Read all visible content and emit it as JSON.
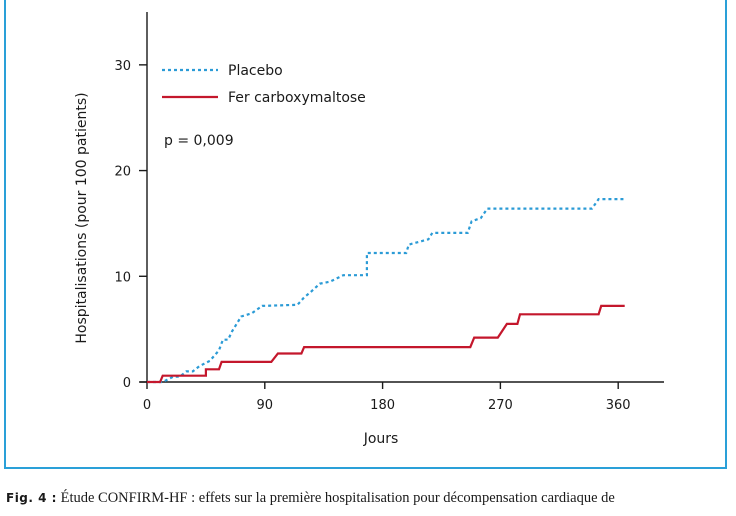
{
  "chart_data": {
    "type": "line",
    "xlabel": "Jours",
    "ylabel": "Hospitalisations (pour 100 patients)",
    "xlim": [
      0,
      395
    ],
    "ylim": [
      0,
      35
    ],
    "xticks": [
      0,
      90,
      180,
      270,
      360
    ],
    "yticks": [
      0,
      10,
      20,
      30
    ],
    "xtick_labels": [
      "0",
      "90",
      "180",
      "270",
      "360"
    ],
    "ytick_labels": [
      "0",
      "10",
      "20",
      "30"
    ],
    "annotation": "p = 0,009",
    "legend_position": "top-left",
    "grid": false,
    "step": true,
    "series": [
      {
        "name": "Placebo",
        "color": "#2b9bd6",
        "style": "dotted",
        "points": [
          [
            0,
            0
          ],
          [
            12,
            0
          ],
          [
            20,
            0.5
          ],
          [
            25,
            0.5
          ],
          [
            30,
            1
          ],
          [
            35,
            1
          ],
          [
            40,
            1.5
          ],
          [
            48,
            2
          ],
          [
            55,
            3
          ],
          [
            58,
            4
          ],
          [
            62,
            4
          ],
          [
            65,
            4.8
          ],
          [
            72,
            6.2
          ],
          [
            80,
            6.5
          ],
          [
            88,
            7.2
          ],
          [
            115,
            7.3
          ],
          [
            120,
            8
          ],
          [
            125,
            8.5
          ],
          [
            132,
            9.3
          ],
          [
            140,
            9.5
          ],
          [
            150,
            10.1
          ],
          [
            168,
            10.1
          ],
          [
            168,
            12.2
          ],
          [
            198,
            12.2
          ],
          [
            200,
            13
          ],
          [
            215,
            13.5
          ],
          [
            218,
            14.1
          ],
          [
            245,
            14.1
          ],
          [
            248,
            15.2
          ],
          [
            255,
            15.5
          ],
          [
            260,
            16.4
          ],
          [
            340,
            16.4
          ],
          [
            345,
            17.3
          ],
          [
            365,
            17.3
          ]
        ]
      },
      {
        "name": "Fer carboxymaltose",
        "color": "#c4172c",
        "style": "solid",
        "points": [
          [
            0,
            0
          ],
          [
            10,
            0
          ],
          [
            12,
            0.6
          ],
          [
            30,
            0.6
          ],
          [
            45,
            0.6
          ],
          [
            45,
            1.2
          ],
          [
            55,
            1.2
          ],
          [
            57,
            1.9
          ],
          [
            95,
            1.9
          ],
          [
            100,
            2.7
          ],
          [
            118,
            2.7
          ],
          [
            120,
            3.3
          ],
          [
            247,
            3.3
          ],
          [
            250,
            4.2
          ],
          [
            268,
            4.2
          ],
          [
            275,
            5.5
          ],
          [
            283,
            5.5
          ],
          [
            285,
            6.4
          ],
          [
            345,
            6.4
          ],
          [
            347,
            7.2
          ],
          [
            365,
            7.2
          ]
        ]
      }
    ]
  },
  "caption": {
    "label": "Fig. 4 :",
    "text": "Étude CONFIRM-HF : effets sur la première hospitalisation pour décompensation cardiaque de"
  }
}
